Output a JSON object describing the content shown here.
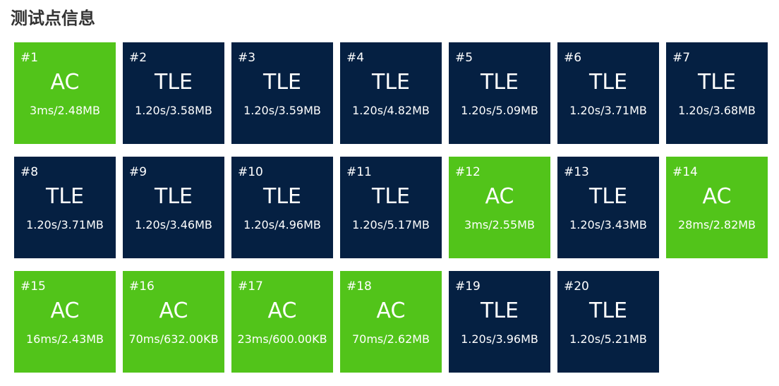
{
  "title": "测试点信息",
  "colors": {
    "ac": "#52c41a",
    "tle": "#052042",
    "text": "#ffffff",
    "title": "#333333"
  },
  "test_cases": [
    {
      "number": "#1",
      "status": "AC",
      "usage": "3ms/2.48MB"
    },
    {
      "number": "#2",
      "status": "TLE",
      "usage": "1.20s/3.58MB"
    },
    {
      "number": "#3",
      "status": "TLE",
      "usage": "1.20s/3.59MB"
    },
    {
      "number": "#4",
      "status": "TLE",
      "usage": "1.20s/4.82MB"
    },
    {
      "number": "#5",
      "status": "TLE",
      "usage": "1.20s/5.09MB"
    },
    {
      "number": "#6",
      "status": "TLE",
      "usage": "1.20s/3.71MB"
    },
    {
      "number": "#7",
      "status": "TLE",
      "usage": "1.20s/3.68MB"
    },
    {
      "number": "#8",
      "status": "TLE",
      "usage": "1.20s/3.71MB"
    },
    {
      "number": "#9",
      "status": "TLE",
      "usage": "1.20s/3.46MB"
    },
    {
      "number": "#10",
      "status": "TLE",
      "usage": "1.20s/4.96MB"
    },
    {
      "number": "#11",
      "status": "TLE",
      "usage": "1.20s/5.17MB"
    },
    {
      "number": "#12",
      "status": "AC",
      "usage": "3ms/2.55MB"
    },
    {
      "number": "#13",
      "status": "TLE",
      "usage": "1.20s/3.43MB"
    },
    {
      "number": "#14",
      "status": "AC",
      "usage": "28ms/2.82MB"
    },
    {
      "number": "#15",
      "status": "AC",
      "usage": "16ms/2.43MB"
    },
    {
      "number": "#16",
      "status": "AC",
      "usage": "70ms/632.00KB"
    },
    {
      "number": "#17",
      "status": "AC",
      "usage": "23ms/600.00KB"
    },
    {
      "number": "#18",
      "status": "AC",
      "usage": "70ms/2.62MB"
    },
    {
      "number": "#19",
      "status": "TLE",
      "usage": "1.20s/3.96MB"
    },
    {
      "number": "#20",
      "status": "TLE",
      "usage": "1.20s/5.21MB"
    }
  ]
}
